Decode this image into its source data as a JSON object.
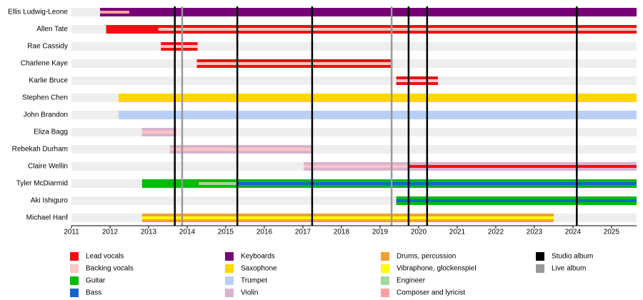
{
  "chart_data": {
    "type": "timeline",
    "xlim": [
      2011,
      2025.65
    ],
    "xticks": [
      2011,
      2012,
      2013,
      2014,
      2015,
      2016,
      2017,
      2018,
      2019,
      2020,
      2021,
      2022,
      2023,
      2024,
      2025
    ],
    "roles": [
      {
        "name": "Lead vocals",
        "color": "#ee1111"
      },
      {
        "name": "Backing vocals",
        "color": "#ffc4c4"
      },
      {
        "name": "Guitar",
        "color": "#00bb00"
      },
      {
        "name": "Bass",
        "color": "#1166cc"
      },
      {
        "name": "Keyboards",
        "color": "#770077"
      },
      {
        "name": "Saxophone",
        "color": "#ffd700"
      },
      {
        "name": "Trumpet",
        "color": "#b8d0f8"
      },
      {
        "name": "Violin",
        "color": "#d8b4d0"
      },
      {
        "name": "Drums, percussion",
        "color": "#f4a030"
      },
      {
        "name": "Vibraphone, glockenspiel",
        "color": "#ffff00"
      },
      {
        "name": "Engineer",
        "color": "#a0d8a0"
      },
      {
        "name": "Composer and lyricist",
        "color": "#f7a0a0"
      }
    ],
    "albums": [
      {
        "name": "Studio album",
        "color": "#000000",
        "values": [
          2013.68,
          2015.3,
          2017.24,
          2019.74,
          2020.22,
          2024.1
        ]
      },
      {
        "name": "Live album",
        "color": "#999999",
        "values": [
          2013.87,
          2019.3
        ]
      }
    ],
    "members": [
      {
        "name": "Ellis Ludwig-Leone",
        "bars": [
          {
            "role": "Keyboards",
            "start": 2011.74,
            "end": 2025.65
          }
        ],
        "stripes": [
          {
            "role": "Composer and lyricist",
            "start": 2011.74,
            "end": 2012.5
          }
        ]
      },
      {
        "name": "Allen Tate",
        "bars": [
          {
            "role": "Lead vocals",
            "start": 2011.9,
            "end": 2025.65
          }
        ],
        "stripes": [
          {
            "role": "Backing vocals",
            "start": 2013.25,
            "end": 2025.65
          }
        ]
      },
      {
        "name": "Rae Cassidy",
        "bars": [
          {
            "role": "Lead vocals",
            "start": 2013.32,
            "end": 2014.27
          }
        ],
        "stripes": [
          {
            "role": "Backing vocals",
            "start": 2013.32,
            "end": 2014.27
          }
        ]
      },
      {
        "name": "Charlene Kaye",
        "bars": [
          {
            "role": "Lead vocals",
            "start": 2014.25,
            "end": 2019.32
          }
        ],
        "stripes": [
          {
            "role": "Backing vocals",
            "start": 2014.25,
            "end": 2019.32
          }
        ]
      },
      {
        "name": "Karlie Bruce",
        "bars": [
          {
            "role": "Lead vocals",
            "start": 2019.42,
            "end": 2020.5
          }
        ],
        "stripes": [
          {
            "role": "Backing vocals",
            "start": 2019.42,
            "end": 2020.5
          }
        ]
      },
      {
        "name": "Stephen Chen",
        "bars": [
          {
            "role": "Saxophone",
            "start": 2012.22,
            "end": 2025.65
          }
        ],
        "stripes": []
      },
      {
        "name": "John Brandon",
        "bars": [
          {
            "role": "Trumpet",
            "start": 2012.22,
            "end": 2025.65
          }
        ],
        "stripes": []
      },
      {
        "name": "Eliza Bagg",
        "bars": [
          {
            "role": "Violin",
            "start": 2012.83,
            "end": 2013.72
          }
        ],
        "stripes": [
          {
            "role": "Backing vocals",
            "start": 2012.83,
            "end": 2013.72
          }
        ]
      },
      {
        "name": "Rebekah Durham",
        "bars": [
          {
            "role": "Violin",
            "start": 2013.55,
            "end": 2017.26
          }
        ],
        "stripes": [
          {
            "role": "Backing vocals",
            "start": 2013.55,
            "end": 2017.26
          }
        ]
      },
      {
        "name": "Claire Wellin",
        "bars": [
          {
            "role": "Violin",
            "start": 2017.02,
            "end": 2025.65
          }
        ],
        "stripes": [
          {
            "role": "Backing vocals",
            "start": 2017.02,
            "end": 2019.74
          },
          {
            "role": "Lead vocals",
            "start": 2019.74,
            "end": 2025.65
          }
        ]
      },
      {
        "name": "Tyler McDiarmid",
        "bars": [
          {
            "role": "Guitar",
            "start": 2012.83,
            "end": 2025.65
          }
        ],
        "stripes": [
          {
            "role": "Engineer",
            "start": 2014.3,
            "end": 2015.3
          },
          {
            "role": "Bass",
            "start": 2015.3,
            "end": 2025.65
          }
        ]
      },
      {
        "name": "Aki Ishiguro",
        "bars": [
          {
            "role": "Guitar",
            "start": 2019.42,
            "end": 2025.65
          }
        ],
        "stripes": [
          {
            "role": "Bass",
            "start": 2019.42,
            "end": 2025.65
          }
        ]
      },
      {
        "name": "Michael Hanf",
        "bars": [
          {
            "role": "Drums, percussion",
            "start": 2012.83,
            "end": 2023.5
          }
        ],
        "stripes": [
          {
            "role": "Vibraphone, glockenspiel",
            "start": 2012.83,
            "end": 2023.5
          }
        ]
      }
    ]
  }
}
